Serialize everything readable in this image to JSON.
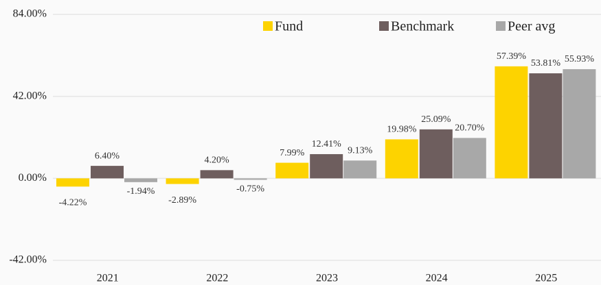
{
  "chart_data": {
    "type": "bar",
    "categories": [
      "2021",
      "2022",
      "2023",
      "2024",
      "2025"
    ],
    "series": [
      {
        "name": "Fund",
        "color": "#fdd300",
        "values": [
          -4.22,
          -2.89,
          7.99,
          19.98,
          57.39
        ],
        "value_labels": [
          "-4.22%",
          "-2.89%",
          "7.99%",
          "19.98%",
          "57.39%"
        ]
      },
      {
        "name": "Benchmark",
        "color": "#6e5e5e",
        "values": [
          6.4,
          4.2,
          12.41,
          25.09,
          53.81
        ],
        "value_labels": [
          "6.40%",
          "4.20%",
          "12.41%",
          "25.09%",
          "53.81%"
        ]
      },
      {
        "name": "Peer avg",
        "color": "#a8a8a8",
        "values": [
          -1.94,
          -0.75,
          9.13,
          20.7,
          55.93
        ],
        "value_labels": [
          "-1.94%",
          "-0.75%",
          "9.13%",
          "20.70%",
          "55.93%"
        ]
      }
    ],
    "ylim": [
      -42,
      84
    ],
    "yticks": [
      {
        "value": -42,
        "label": "-42.00%"
      },
      {
        "value": 0,
        "label": "0.00%"
      },
      {
        "value": 42,
        "label": "42.00%"
      },
      {
        "value": 84,
        "label": "84.00%"
      }
    ],
    "grid": true
  }
}
